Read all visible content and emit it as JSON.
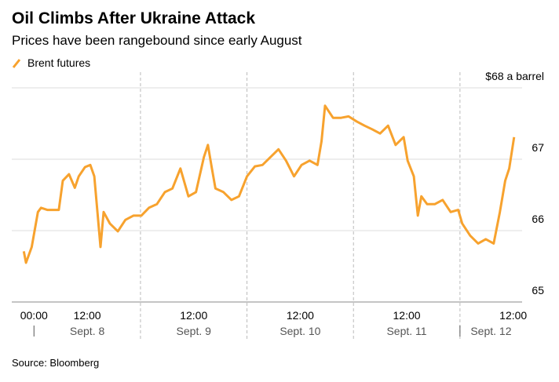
{
  "chart_data": {
    "type": "line",
    "title": "Oil Climbs After Ukraine Attack",
    "subtitle": "Prices have been rangebound since early August",
    "source": "Source: Bloomberg",
    "x": [
      -2.3,
      -1.8,
      -0.5,
      0.9,
      1.6,
      3.0,
      5.6,
      6.5,
      7.9,
      9.2,
      10.1,
      11.5,
      12.7,
      13.6,
      14.3,
      15.0,
      15.7,
      17.1,
      18.9,
      20.6,
      22.4,
      24.2,
      25.9,
      27.7,
      29.5,
      31.2,
      33.0,
      34.8,
      36.5,
      38.3,
      39.2,
      40.1,
      40.9,
      42.7,
      44.5,
      46.2,
      48.0,
      49.8,
      51.5,
      53.3,
      55.1,
      56.8,
      58.6,
      60.3,
      62.1,
      63.9,
      64.8,
      65.6,
      67.4,
      69.2,
      70.9,
      72.7,
      74.5,
      76.2,
      78.0,
      79.8,
      81.5,
      83.3,
      84.2,
      85.6,
      86.5,
      87.3,
      88.6,
      90.3,
      92.1,
      93.9,
      95.6,
      96.5,
      98.3,
      100.1,
      101.8,
      103.6,
      105.0,
      106.2,
      107.1,
      108.2
    ],
    "series": [
      {
        "name": "Brent futures",
        "color": "#f7a22e",
        "values": [
          65.71,
          65.55,
          65.77,
          66.26,
          66.32,
          66.29,
          66.29,
          66.7,
          66.79,
          66.6,
          66.76,
          66.89,
          66.92,
          66.76,
          66.26,
          65.77,
          66.26,
          66.1,
          65.99,
          66.15,
          66.21,
          66.21,
          66.32,
          66.37,
          66.54,
          66.59,
          66.87,
          66.48,
          66.54,
          67.03,
          67.2,
          66.87,
          66.59,
          66.54,
          66.43,
          66.48,
          66.76,
          66.9,
          66.92,
          67.03,
          67.14,
          66.98,
          66.76,
          66.92,
          66.98,
          66.92,
          67.25,
          67.75,
          67.58,
          67.58,
          67.6,
          67.53,
          67.47,
          67.42,
          67.36,
          67.47,
          67.2,
          67.31,
          66.98,
          66.76,
          66.21,
          66.48,
          66.37,
          66.37,
          66.43,
          66.26,
          66.29,
          66.1,
          65.93,
          65.82,
          65.88,
          65.82,
          66.26,
          66.7,
          66.87,
          67.31
        ]
      }
    ],
    "xlim": [
      -5,
      110
    ],
    "xticks": [
      {
        "value": 0,
        "label": "00:00"
      },
      {
        "value": 12,
        "label": "12:00"
      },
      {
        "value": 36,
        "label": "12:00"
      },
      {
        "value": 60,
        "label": "12:00"
      },
      {
        "value": 84,
        "label": "12:00"
      },
      {
        "value": 108,
        "label": "12:00"
      }
    ],
    "day_boundaries": [
      24,
      48,
      72,
      96
    ],
    "days": [
      "Sept. 8",
      "Sept. 9",
      "Sept. 10",
      "Sept. 11",
      "Sept. 12"
    ],
    "ylim": [
      65,
      68
    ],
    "yticks": [
      65,
      66,
      67,
      {
        "value": 68,
        "label": "$68 a barrel"
      }
    ],
    "grid": true
  }
}
